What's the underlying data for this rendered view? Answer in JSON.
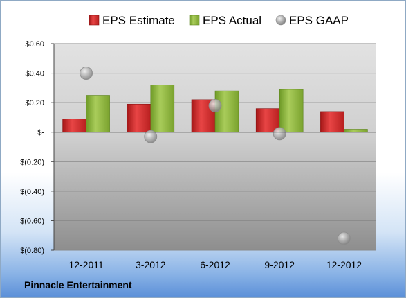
{
  "chart_data": {
    "type": "bar",
    "title": "",
    "categories": [
      "12-2011",
      "3-2012",
      "6-2012",
      "9-2012",
      "12-2012"
    ],
    "series": [
      {
        "name": "EPS Estimate",
        "kind": "bar",
        "color": "#cc2a2a",
        "values": [
          0.09,
          0.19,
          0.22,
          0.16,
          0.14
        ]
      },
      {
        "name": "EPS Actual",
        "kind": "bar",
        "color": "#8db23c",
        "values": [
          0.25,
          0.32,
          0.28,
          0.29,
          0.02
        ]
      },
      {
        "name": "EPS GAAP",
        "kind": "scatter",
        "color": "#a8a8a8",
        "values": [
          0.4,
          -0.03,
          0.18,
          -0.01,
          -0.72
        ]
      }
    ],
    "ylim": [
      -0.8,
      0.6
    ],
    "yticks": [
      0.6,
      0.4,
      0.2,
      0,
      -0.2,
      -0.4,
      -0.6,
      -0.8
    ],
    "ytick_labels": [
      "$0.60",
      "$0.40",
      "$0.20",
      "$-",
      "$(0.20)",
      "$(0.40)",
      "$(0.60)",
      "$(0.80)"
    ],
    "grid": true,
    "legend_position": "top",
    "footer_label": "Pinnacle Entertainment"
  }
}
